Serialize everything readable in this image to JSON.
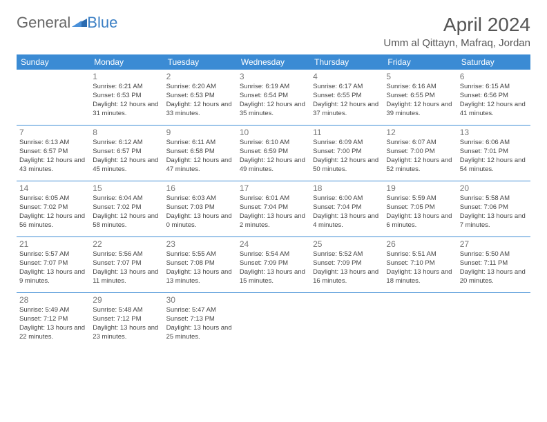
{
  "logo": {
    "part1": "General",
    "part2": "Blue"
  },
  "title": "April 2024",
  "location": "Umm al Qittayn, Mafraq, Jordan",
  "colors": {
    "header_bg": "#3b8bd4",
    "header_text": "#ffffff",
    "border": "#3b8bd4",
    "text": "#444444",
    "daynum": "#777777",
    "title_text": "#555555",
    "logo_gray": "#666666",
    "logo_blue": "#3b7fc4"
  },
  "weekdays": [
    "Sunday",
    "Monday",
    "Tuesday",
    "Wednesday",
    "Thursday",
    "Friday",
    "Saturday"
  ],
  "weeks": [
    [
      null,
      {
        "n": "1",
        "sr": "Sunrise: 6:21 AM",
        "ss": "Sunset: 6:53 PM",
        "dl": "Daylight: 12 hours and 31 minutes."
      },
      {
        "n": "2",
        "sr": "Sunrise: 6:20 AM",
        "ss": "Sunset: 6:53 PM",
        "dl": "Daylight: 12 hours and 33 minutes."
      },
      {
        "n": "3",
        "sr": "Sunrise: 6:19 AM",
        "ss": "Sunset: 6:54 PM",
        "dl": "Daylight: 12 hours and 35 minutes."
      },
      {
        "n": "4",
        "sr": "Sunrise: 6:17 AM",
        "ss": "Sunset: 6:55 PM",
        "dl": "Daylight: 12 hours and 37 minutes."
      },
      {
        "n": "5",
        "sr": "Sunrise: 6:16 AM",
        "ss": "Sunset: 6:55 PM",
        "dl": "Daylight: 12 hours and 39 minutes."
      },
      {
        "n": "6",
        "sr": "Sunrise: 6:15 AM",
        "ss": "Sunset: 6:56 PM",
        "dl": "Daylight: 12 hours and 41 minutes."
      }
    ],
    [
      {
        "n": "7",
        "sr": "Sunrise: 6:13 AM",
        "ss": "Sunset: 6:57 PM",
        "dl": "Daylight: 12 hours and 43 minutes."
      },
      {
        "n": "8",
        "sr": "Sunrise: 6:12 AM",
        "ss": "Sunset: 6:57 PM",
        "dl": "Daylight: 12 hours and 45 minutes."
      },
      {
        "n": "9",
        "sr": "Sunrise: 6:11 AM",
        "ss": "Sunset: 6:58 PM",
        "dl": "Daylight: 12 hours and 47 minutes."
      },
      {
        "n": "10",
        "sr": "Sunrise: 6:10 AM",
        "ss": "Sunset: 6:59 PM",
        "dl": "Daylight: 12 hours and 49 minutes."
      },
      {
        "n": "11",
        "sr": "Sunrise: 6:09 AM",
        "ss": "Sunset: 7:00 PM",
        "dl": "Daylight: 12 hours and 50 minutes."
      },
      {
        "n": "12",
        "sr": "Sunrise: 6:07 AM",
        "ss": "Sunset: 7:00 PM",
        "dl": "Daylight: 12 hours and 52 minutes."
      },
      {
        "n": "13",
        "sr": "Sunrise: 6:06 AM",
        "ss": "Sunset: 7:01 PM",
        "dl": "Daylight: 12 hours and 54 minutes."
      }
    ],
    [
      {
        "n": "14",
        "sr": "Sunrise: 6:05 AM",
        "ss": "Sunset: 7:02 PM",
        "dl": "Daylight: 12 hours and 56 minutes."
      },
      {
        "n": "15",
        "sr": "Sunrise: 6:04 AM",
        "ss": "Sunset: 7:02 PM",
        "dl": "Daylight: 12 hours and 58 minutes."
      },
      {
        "n": "16",
        "sr": "Sunrise: 6:03 AM",
        "ss": "Sunset: 7:03 PM",
        "dl": "Daylight: 13 hours and 0 minutes."
      },
      {
        "n": "17",
        "sr": "Sunrise: 6:01 AM",
        "ss": "Sunset: 7:04 PM",
        "dl": "Daylight: 13 hours and 2 minutes."
      },
      {
        "n": "18",
        "sr": "Sunrise: 6:00 AM",
        "ss": "Sunset: 7:04 PM",
        "dl": "Daylight: 13 hours and 4 minutes."
      },
      {
        "n": "19",
        "sr": "Sunrise: 5:59 AM",
        "ss": "Sunset: 7:05 PM",
        "dl": "Daylight: 13 hours and 6 minutes."
      },
      {
        "n": "20",
        "sr": "Sunrise: 5:58 AM",
        "ss": "Sunset: 7:06 PM",
        "dl": "Daylight: 13 hours and 7 minutes."
      }
    ],
    [
      {
        "n": "21",
        "sr": "Sunrise: 5:57 AM",
        "ss": "Sunset: 7:07 PM",
        "dl": "Daylight: 13 hours and 9 minutes."
      },
      {
        "n": "22",
        "sr": "Sunrise: 5:56 AM",
        "ss": "Sunset: 7:07 PM",
        "dl": "Daylight: 13 hours and 11 minutes."
      },
      {
        "n": "23",
        "sr": "Sunrise: 5:55 AM",
        "ss": "Sunset: 7:08 PM",
        "dl": "Daylight: 13 hours and 13 minutes."
      },
      {
        "n": "24",
        "sr": "Sunrise: 5:54 AM",
        "ss": "Sunset: 7:09 PM",
        "dl": "Daylight: 13 hours and 15 minutes."
      },
      {
        "n": "25",
        "sr": "Sunrise: 5:52 AM",
        "ss": "Sunset: 7:09 PM",
        "dl": "Daylight: 13 hours and 16 minutes."
      },
      {
        "n": "26",
        "sr": "Sunrise: 5:51 AM",
        "ss": "Sunset: 7:10 PM",
        "dl": "Daylight: 13 hours and 18 minutes."
      },
      {
        "n": "27",
        "sr": "Sunrise: 5:50 AM",
        "ss": "Sunset: 7:11 PM",
        "dl": "Daylight: 13 hours and 20 minutes."
      }
    ],
    [
      {
        "n": "28",
        "sr": "Sunrise: 5:49 AM",
        "ss": "Sunset: 7:12 PM",
        "dl": "Daylight: 13 hours and 22 minutes."
      },
      {
        "n": "29",
        "sr": "Sunrise: 5:48 AM",
        "ss": "Sunset: 7:12 PM",
        "dl": "Daylight: 13 hours and 23 minutes."
      },
      {
        "n": "30",
        "sr": "Sunrise: 5:47 AM",
        "ss": "Sunset: 7:13 PM",
        "dl": "Daylight: 13 hours and 25 minutes."
      },
      null,
      null,
      null,
      null
    ]
  ]
}
